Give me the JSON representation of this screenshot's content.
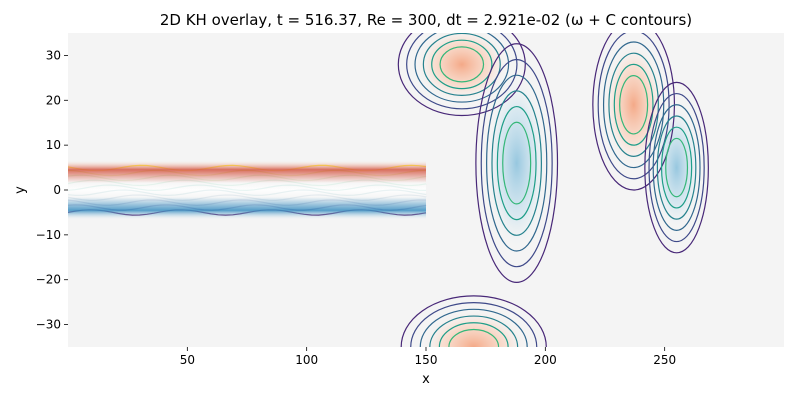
{
  "chart_data": {
    "type": "heatmap",
    "title": "2D KH overlay, t =  516.37, Re = 300, dt = 2.921e-02 (ω + C contours)",
    "xlabel": "x",
    "ylabel": "y",
    "xlim": [
      0,
      300
    ],
    "ylim": [
      -35,
      35
    ],
    "x_ticks": [
      50,
      100,
      150,
      200,
      250
    ],
    "y_ticks": [
      -30,
      -20,
      -10,
      0,
      10,
      20,
      30
    ],
    "x_tick_labels": [
      "50",
      "100",
      "150",
      "200",
      "250"
    ],
    "y_tick_labels": [
      "−30",
      "−20",
      "−10",
      "0",
      "10",
      "20",
      "30"
    ],
    "grid": false,
    "colormap": "RdBu_r",
    "contour_colormap": "viridis",
    "background_color": "#f4f4f4",
    "vorticity_blobs": [
      {
        "cx": 165,
        "cy": 28,
        "rx": 14,
        "ry": 6,
        "sign": "positive"
      },
      {
        "cx": 188,
        "cy": 6,
        "rx": 9,
        "ry": 14,
        "sign": "negative"
      },
      {
        "cx": 237,
        "cy": 19,
        "rx": 9,
        "ry": 10,
        "sign": "positive"
      },
      {
        "cx": 255,
        "cy": 5,
        "rx": 7,
        "ry": 10,
        "sign": "negative"
      },
      {
        "cx": 170,
        "cy": -35,
        "rx": 16,
        "ry": 6,
        "sign": "positive"
      }
    ]
  }
}
